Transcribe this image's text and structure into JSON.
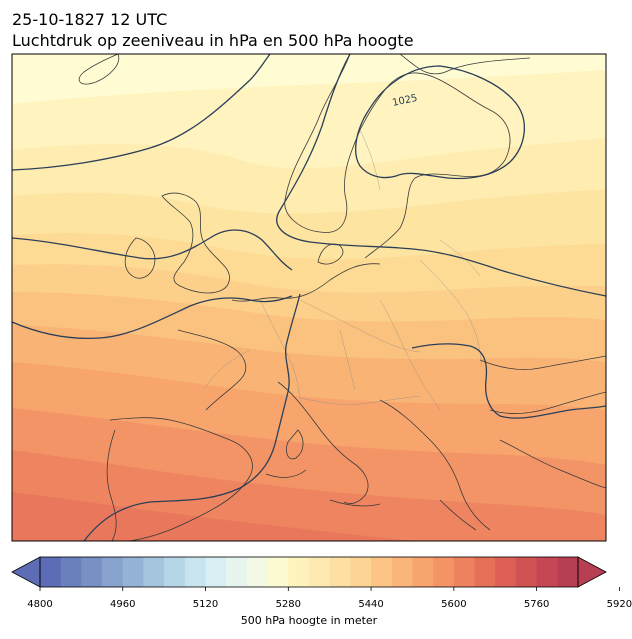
{
  "header": {
    "datetime": "25-10-1827 12 UTC",
    "subtitle": "Luchtdruk op zeeniveau in hPa en 500 hPa hoogte"
  },
  "map": {
    "isobar_label": "1025",
    "contour_colors": [
      "#fffbd2",
      "#fff3bf",
      "#feecb0",
      "#fee4a1",
      "#fddb95",
      "#fcd08a",
      "#fbc27f",
      "#f9b375",
      "#f7a56d",
      "#f39466",
      "#ee8560",
      "#e8775b"
    ],
    "isobar_color": "#2b3f58"
  },
  "colorbar": {
    "ticks": [
      "4800",
      "4960",
      "5120",
      "5280",
      "5440",
      "5600",
      "5760",
      "5920"
    ],
    "label": "500 hPa hoogte in meter",
    "colors": [
      "#5c6db5",
      "#6a80bd",
      "#7891c5",
      "#86a2cd",
      "#95b3d6",
      "#a5c5df",
      "#b6d6e8",
      "#c8e4ef",
      "#d9eef3",
      "#e8f5ef",
      "#f3f9e4",
      "#fcfad0",
      "#fef3bc",
      "#feeab0",
      "#fee0a2",
      "#fdd493",
      "#fcc585",
      "#fab57a",
      "#f7a46f",
      "#f39366",
      "#ee815e",
      "#e66f58",
      "#dd5f55",
      "#d15253",
      "#c44753",
      "#b63f54"
    ]
  }
}
